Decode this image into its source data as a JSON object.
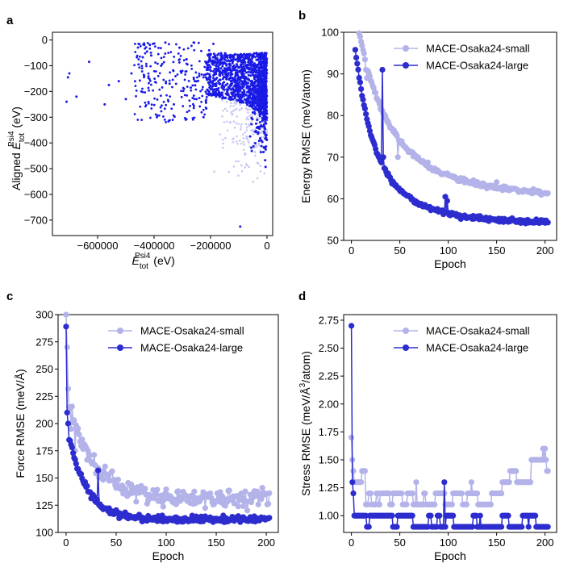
{
  "colors": {
    "small": "#b3b3ea",
    "large": "#2c2ccf",
    "scatter_dark": "#1a1ae6",
    "scatter_light": "#c8c8f2"
  },
  "panels": [
    {
      "letter": "a",
      "chart_data": {
        "type": "scatter",
        "xlabel_main": "E",
        "xlabel_sub": "tot",
        "xlabel_sup": "Psi4",
        "xlabel_unit": " (eV)",
        "ylabel_prefix": "Aligned ",
        "ylabel_main": "E",
        "ylabel_sub": "tot",
        "ylabel_sup": "Psi4",
        "ylabel_unit": " (eV)",
        "xlim": [
          -760000,
          20000
        ],
        "ylim": [
          -760,
          30
        ],
        "xticks": [
          {
            "v": -600000,
            "label": "−600000"
          },
          {
            "v": -400000,
            "label": "−400000"
          },
          {
            "v": -200000,
            "label": "−200000"
          },
          {
            "v": 0,
            "label": "0"
          }
        ],
        "yticks": [
          {
            "v": 0,
            "label": "0"
          },
          {
            "v": -100,
            "label": "−100"
          },
          {
            "v": -200,
            "label": "−200"
          },
          {
            "v": -300,
            "label": "−300"
          },
          {
            "v": -400,
            "label": "−400"
          },
          {
            "v": -500,
            "label": "−500"
          },
          {
            "v": -600,
            "label": "−600"
          },
          {
            "v": -700,
            "label": "−700"
          }
        ],
        "outliers": [
          {
            "x": -705000,
            "y": -145
          },
          {
            "x": -700000,
            "y": -130
          },
          {
            "x": -710000,
            "y": -240
          },
          {
            "x": -675000,
            "y": -220
          },
          {
            "x": -630000,
            "y": -85
          },
          {
            "x": -575000,
            "y": -250
          },
          {
            "x": -560000,
            "y": -175
          },
          {
            "x": -525000,
            "y": -160
          },
          {
            "x": -500000,
            "y": -230
          },
          {
            "x": -480000,
            "y": -130
          },
          {
            "x": -455000,
            "y": -95
          },
          {
            "x": -445000,
            "y": -200
          },
          {
            "x": -435000,
            "y": -140
          },
          {
            "x": -425000,
            "y": -45
          },
          {
            "x": -410000,
            "y": -60
          },
          {
            "x": -390000,
            "y": -300
          },
          {
            "x": -375000,
            "y": -100
          },
          {
            "x": -360000,
            "y": -10
          },
          {
            "x": -345000,
            "y": -170
          },
          {
            "x": -330000,
            "y": -250
          },
          {
            "x": -310000,
            "y": -30
          },
          {
            "x": -300000,
            "y": -120
          },
          {
            "x": -285000,
            "y": -75
          },
          {
            "x": -270000,
            "y": -185
          },
          {
            "x": -260000,
            "y": -10
          },
          {
            "x": -250000,
            "y": -230
          },
          {
            "x": -240000,
            "y": -140
          },
          {
            "x": -225000,
            "y": -300
          },
          {
            "x": -215000,
            "y": -90
          },
          {
            "x": -205000,
            "y": -40
          },
          {
            "x": -190000,
            "y": -15
          },
          {
            "x": -95000,
            "y": -725
          }
        ]
      }
    },
    {
      "letter": "b",
      "chart_data": {
        "type": "line",
        "xlabel": "Epoch",
        "ylabel": "Energy RMSE (meV/atom)",
        "xlim": [
          -8,
          212
        ],
        "ylim": [
          50,
          100
        ],
        "xticks": [
          {
            "v": 0,
            "label": "0"
          },
          {
            "v": 50,
            "label": "50"
          },
          {
            "v": 100,
            "label": "100"
          },
          {
            "v": 150,
            "label": "150"
          },
          {
            "v": 200,
            "label": "200"
          }
        ],
        "yticks": [
          {
            "v": 50,
            "label": "50"
          },
          {
            "v": 60,
            "label": "60"
          },
          {
            "v": 70,
            "label": "70"
          },
          {
            "v": 80,
            "label": "80"
          },
          {
            "v": 90,
            "label": "90"
          },
          {
            "v": 100,
            "label": "100"
          }
        ],
        "legend": [
          "MACE-Osaka24-small",
          "MACE-Osaka24-large"
        ],
        "series": [
          {
            "name": "MACE-Osaka24-small",
            "model": "exp",
            "start": 101,
            "end": 60.2,
            "tau": 70,
            "start_epoch": 7,
            "spikes": [
              [
                15,
                91
              ],
              [
                16,
                89
              ],
              [
                48,
                70
              ],
              [
                150,
                64
              ]
            ]
          },
          {
            "name": "MACE-Osaka24-large",
            "model": "exp",
            "start": 96,
            "end": 54.2,
            "tau": 45,
            "start_epoch": 4,
            "spikes": [
              [
                32,
                91
              ],
              [
                33,
                70
              ],
              [
                97,
                60.5
              ],
              [
                99,
                59.5
              ]
            ]
          }
        ]
      }
    },
    {
      "letter": "c",
      "chart_data": {
        "type": "line",
        "xlabel": "Epoch",
        "ylabel": "Force RMSE (meV/Å)",
        "xlim": [
          -8,
          212
        ],
        "ylim": [
          100,
          300
        ],
        "xticks": [
          {
            "v": 0,
            "label": "0"
          },
          {
            "v": 50,
            "label": "50"
          },
          {
            "v": 100,
            "label": "100"
          },
          {
            "v": 150,
            "label": "150"
          },
          {
            "v": 200,
            "label": "200"
          }
        ],
        "yticks": [
          {
            "v": 100,
            "label": "100"
          },
          {
            "v": 125,
            "label": "125"
          },
          {
            "v": 150,
            "label": "150"
          },
          {
            "v": 175,
            "label": "175"
          },
          {
            "v": 200,
            "label": "200"
          },
          {
            "v": 225,
            "label": "225"
          },
          {
            "v": 250,
            "label": "250"
          },
          {
            "v": 275,
            "label": "275"
          },
          {
            "v": 300,
            "label": "300"
          }
        ],
        "legend": [
          "MACE-Osaka24-small",
          "MACE-Osaka24-large"
        ],
        "series": [
          {
            "name": "MACE-Osaka24-small",
            "model": "decay",
            "first": [
              300,
              270,
              232,
              215
            ],
            "end": 131,
            "tau": 25,
            "noise": 4,
            "spikes": [
              [
                5,
                195
              ],
              [
                9,
                175
              ]
            ]
          },
          {
            "name": "MACE-Osaka24-large",
            "model": "decay",
            "first": [
              289,
              210,
              200,
              185
            ],
            "end": 112,
            "tau": 18,
            "noise": 1.5,
            "spikes": [
              [
                32,
                157
              ],
              [
                33,
                125
              ]
            ]
          }
        ]
      }
    },
    {
      "letter": "d",
      "chart_data": {
        "type": "line",
        "xlabel": "Epoch",
        "ylabel_main": "Stress RMSE (meV/Å",
        "ylabel_sup": "3",
        "ylabel_tail": "/atom)",
        "xlim": [
          -8,
          212
        ],
        "ylim": [
          0.85,
          2.8
        ],
        "xticks": [
          {
            "v": 0,
            "label": "0"
          },
          {
            "v": 50,
            "label": "50"
          },
          {
            "v": 100,
            "label": "100"
          },
          {
            "v": 150,
            "label": "150"
          },
          {
            "v": 200,
            "label": "200"
          }
        ],
        "yticks": [
          {
            "v": 1.0,
            "label": "1.00"
          },
          {
            "v": 1.25,
            "label": "1.25"
          },
          {
            "v": 1.5,
            "label": "1.50"
          },
          {
            "v": 1.75,
            "label": "1.75"
          },
          {
            "v": 2.0,
            "label": "2.00"
          },
          {
            "v": 2.25,
            "label": "2.25"
          },
          {
            "v": 2.5,
            "label": "2.50"
          },
          {
            "v": 2.75,
            "label": "2.75"
          }
        ],
        "legend": [
          "MACE-Osaka24-small",
          "MACE-Osaka24-large"
        ],
        "series": [
          {
            "name": "MACE-Osaka24-small",
            "model": "step",
            "first": [
              1.7,
              1.5,
              1.4
            ],
            "levels": [
              [
                3,
                14,
                [
                  1.3,
                  1.4
                ]
              ],
              [
                15,
                155,
                [
                  1.1,
                  1.2
                ]
              ],
              [
                156,
                185,
                [
                  1.3,
                  1.4
                ]
              ],
              [
                186,
                203,
                [
                  1.4,
                  1.5
                ]
              ]
            ],
            "spikes": [
              [
                67,
                1.3
              ],
              [
                124,
                1.3
              ],
              [
                198,
                1.6
              ],
              [
                200,
                1.6
              ]
            ]
          },
          {
            "name": "MACE-Osaka24-large",
            "model": "step",
            "first": [
              2.7,
              1.3,
              1.2
            ],
            "levels": [
              [
                3,
                15,
                [
                  1.0,
                  1.1
                ]
              ],
              [
                16,
                155,
                [
                  0.9,
                  1.0
                ]
              ],
              [
                156,
                203,
                [
                  0.9,
                  1.0
                ]
              ]
            ],
            "spikes": [
              [
                96,
                1.3
              ]
            ]
          }
        ]
      }
    }
  ]
}
